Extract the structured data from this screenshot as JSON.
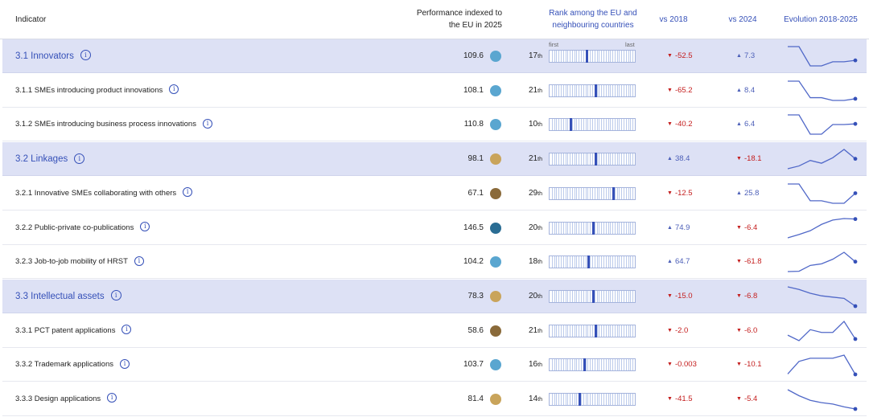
{
  "header": {
    "indicator": "Indicator",
    "performance_line1": "Performance indexed to",
    "performance_line2": "the EU in 2025",
    "rank_line1": "Rank among the EU and",
    "rank_line2": "neighbouring countries",
    "vs2018": "vs 2018",
    "vs2024": "vs 2024",
    "evolution": "Evolution 2018-2025"
  },
  "rank_scale": {
    "first": "first",
    "last": "last",
    "total_positions": 38
  },
  "info_glyph": "i",
  "colors": {
    "accent": "#3550b8",
    "group_row_bg": "#dde1f5",
    "increase": "#4c5fb8",
    "decrease": "#c41d1d",
    "dot_light_blue": "#5aa6d0",
    "dot_dark_blue": "#2a6d94",
    "dot_gold": "#c9a45b",
    "dot_brown": "#8a6a3a"
  },
  "rows": [
    {
      "name": "3.1 Innovators",
      "group": true,
      "perf": "109.6",
      "dot": "#5aa6d0",
      "rank": "17",
      "rank_suffix": "th",
      "vs2018": "-52.5",
      "vs2018_dir": "down",
      "vs2024": "7.3",
      "vs2024_dir": "up",
      "series": [
        112,
        112,
        98,
        98,
        101,
        101,
        102
      ]
    },
    {
      "name": "3.1.1 SMEs introducing product innovations",
      "group": false,
      "perf": "108.1",
      "dot": "#5aa6d0",
      "rank": "21",
      "rank_suffix": "th",
      "vs2018": "-65.2",
      "vs2018_dir": "down",
      "vs2024": "8.4",
      "vs2024_dir": "up",
      "series": [
        135,
        135,
        105,
        105,
        100,
        100,
        103
      ]
    },
    {
      "name": "3.1.2 SMEs introducing business process innovations",
      "group": false,
      "perf": "110.8",
      "dot": "#5aa6d0",
      "rank": "10",
      "rank_suffix": "th",
      "vs2018": "-40.2",
      "vs2018_dir": "down",
      "vs2024": "6.4",
      "vs2024_dir": "up",
      "series": [
        125,
        125,
        95,
        95,
        110,
        110,
        111
      ]
    },
    {
      "name": "3.2 Linkages",
      "group": true,
      "perf": "98.1",
      "dot": "#c9a45b",
      "rank": "21",
      "rank_suffix": "th",
      "vs2018": "38.4",
      "vs2018_dir": "up",
      "vs2024": "-18.1",
      "vs2024_dir": "down",
      "series": [
        80,
        85,
        95,
        90,
        100,
        115,
        98
      ]
    },
    {
      "name": "3.2.1 Innovative SMEs collaborating with others",
      "group": false,
      "perf": "67.1",
      "dot": "#8a6a3a",
      "rank": "29",
      "rank_suffix": "th",
      "vs2018": "-12.5",
      "vs2018_dir": "down",
      "vs2024": "25.8",
      "vs2024_dir": "up",
      "series": [
        78,
        78,
        58,
        58,
        55,
        55,
        67
      ]
    },
    {
      "name": "3.2.2 Public-private co-publications",
      "group": false,
      "perf": "146.5",
      "dot": "#2a6d94",
      "rank": "20",
      "rank_suffix": "th",
      "vs2018": "74.9",
      "vs2018_dir": "up",
      "vs2024": "-6.4",
      "vs2024_dir": "down",
      "series": [
        72,
        85,
        100,
        125,
        142,
        148,
        146
      ]
    },
    {
      "name": "3.2.3 Job-to-job mobility of HRST",
      "group": false,
      "perf": "104.2",
      "dot": "#5aa6d0",
      "rank": "18",
      "rank_suffix": "th",
      "vs2018": "64.7",
      "vs2018_dir": "up",
      "vs2024": "-61.8",
      "vs2024_dir": "down",
      "series": [
        40,
        42,
        80,
        90,
        120,
        165,
        104
      ]
    },
    {
      "name": "3.3 Intellectual assets",
      "group": true,
      "perf": "78.3",
      "dot": "#c9a45b",
      "rank": "20",
      "rank_suffix": "th",
      "vs2018": "-15.0",
      "vs2018_dir": "down",
      "vs2024": "-6.8",
      "vs2024_dir": "down",
      "series": [
        93,
        91,
        88,
        86,
        85,
        84,
        78
      ]
    },
    {
      "name": "3.3.1 PCT patent applications",
      "group": false,
      "perf": "58.6",
      "dot": "#8a6a3a",
      "rank": "21",
      "rank_suffix": "th",
      "vs2018": "-2.0",
      "vs2018_dir": "down",
      "vs2024": "-6.0",
      "vs2024_dir": "down",
      "series": [
        60,
        58,
        62,
        61,
        61,
        65,
        58.6
      ]
    },
    {
      "name": "3.3.2 Trademark applications",
      "group": false,
      "perf": "103.7",
      "dot": "#5aa6d0",
      "rank": "16",
      "rank_suffix": "th",
      "vs2018": "-0.003",
      "vs2018_dir": "down",
      "vs2024": "-10.1",
      "vs2024_dir": "down",
      "series": [
        104,
        112,
        114,
        114,
        114,
        116,
        103.7
      ]
    },
    {
      "name": "3.3.3 Design applications",
      "group": false,
      "perf": "81.4",
      "dot": "#c9a45b",
      "rank": "14",
      "rank_suffix": "th",
      "vs2018": "-41.5",
      "vs2018_dir": "down",
      "vs2024": "-5.4",
      "vs2024_dir": "down",
      "series": [
        123,
        110,
        100,
        95,
        92,
        86,
        81.4
      ]
    }
  ]
}
